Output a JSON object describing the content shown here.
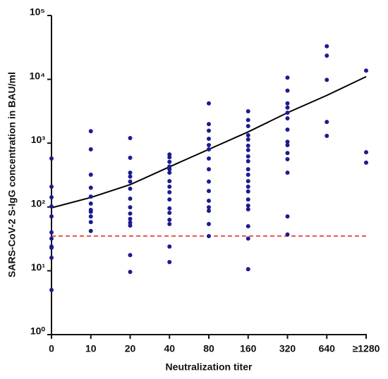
{
  "chart_data": {
    "type": "scatter",
    "x_label": "Neutralization titer",
    "y_label": "SARS-CoV-2 S-IgG concentration in BAU/ml",
    "categories": [
      "0",
      "10",
      "20",
      "40",
      "80",
      "160",
      "320",
      "640",
      "≥1280"
    ],
    "log_y": true,
    "ylim": [
      1,
      100000
    ],
    "yticks": [
      {
        "value": 1,
        "label": "10⁰"
      },
      {
        "value": 10,
        "label": "10¹"
      },
      {
        "value": 100,
        "label": "10²"
      },
      {
        "value": 1000,
        "label": "10³"
      },
      {
        "value": 10000,
        "label": "10⁴"
      },
      {
        "value": 100000,
        "label": "10⁵"
      }
    ],
    "color": "#1c1c8f",
    "values": [
      [
        575,
        208,
        142,
        102,
        71,
        40,
        32,
        24,
        23,
        16,
        5
      ],
      [
        1540,
        800,
        320,
        200,
        145,
        113,
        90,
        84,
        71,
        58,
        42
      ],
      [
        1200,
        590,
        345,
        300,
        250,
        193,
        135,
        99,
        79,
        65,
        57,
        51,
        17.6,
        9.6
      ],
      [
        665,
        600,
        510,
        430,
        390,
        345,
        254,
        208,
        170,
        131,
        95,
        81,
        63,
        54,
        24,
        13.7
      ],
      [
        4200,
        1990,
        1570,
        1170,
        930,
        800,
        575,
        390,
        250,
        178,
        125,
        99,
        87,
        54,
        35
      ],
      [
        3150,
        2300,
        1850,
        1330,
        1140,
        910,
        780,
        620,
        520,
        390,
        320,
        254,
        208,
        175,
        131,
        105,
        92,
        50,
        32,
        10.6
      ],
      [
        10600,
        6650,
        4200,
        3600,
        3000,
        2450,
        1630,
        1050,
        930,
        700,
        560,
        345,
        71,
        37
      ],
      [
        33000,
        23500,
        9800,
        2150,
        1300
      ],
      [
        13700,
        720,
        495
      ]
    ],
    "fit": {
      "color": "#000000",
      "values": [
        97,
        141,
        224,
        426,
        800,
        1500,
        3000,
        5600,
        11000
      ]
    },
    "threshold": {
      "value": 35,
      "color": "#e02020"
    }
  }
}
